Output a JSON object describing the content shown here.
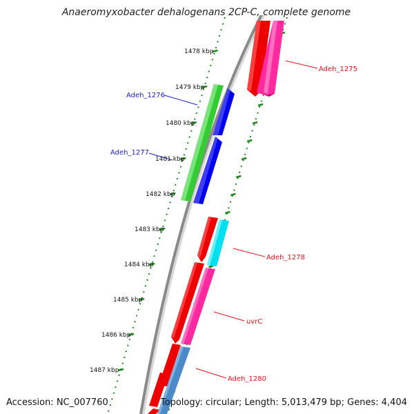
{
  "title": "Anaeromyxobacter dehalogenans 2CP-C, complete genome",
  "footer": {
    "accession": "Accession: NC_007760",
    "summary": "Topology: circular; Length: 5,013,479 bp; Genes: 4,404"
  },
  "ticks": [
    "1478 kbp",
    "1479 kbp",
    "1480 kbp",
    "1481 kbp",
    "1482 kbp",
    "1483 kbp",
    "1484 kbp",
    "1485 kbp",
    "1486 kbp",
    "1487 kbp"
  ],
  "gene_labels": [
    {
      "text": "Adeh_1275",
      "color": "#e8101a"
    },
    {
      "text": "Adeh_1276",
      "color": "#1a1acc"
    },
    {
      "text": "Adeh_1277",
      "color": "#1a1acc"
    },
    {
      "text": "Adeh_1278",
      "color": "#e8101a"
    },
    {
      "text": "uvrC",
      "color": "#e8101a"
    },
    {
      "text": "Adeh_1280",
      "color": "#e8101a"
    }
  ],
  "colors": {
    "backbone": "#8a8a8a",
    "tick_green": "#1a8a1a",
    "red": "#ee0000",
    "magenta": "#ff2aa0",
    "green": "#33cc33",
    "blue": "#0000ee",
    "cyan": "#00e0f0",
    "steelblue": "#4a8ac8"
  }
}
